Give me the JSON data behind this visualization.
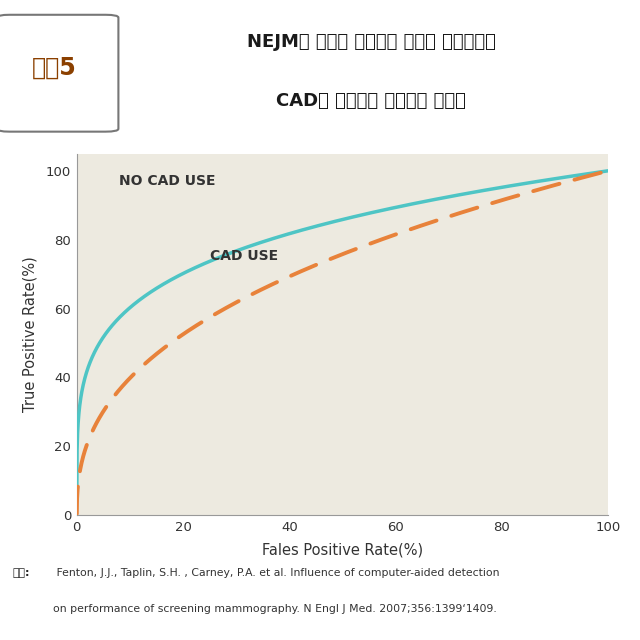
{
  "title_label": "그림5",
  "title_text_line1": "NEJM에 게재된 논문에서 발췌한 유방촬영술",
  "title_text_line2": "CAD의 부작용을 보여주는 그래프",
  "xlabel": "Fales Positive Rate(%)",
  "ylabel": "True Positive Rate(%)",
  "no_cad_label": "NO CAD USE",
  "cad_label": "CAD USE",
  "no_cad_color": "#4EC5C5",
  "cad_color": "#E8823A",
  "plot_bg_color": "#EDEAE0",
  "xlim": [
    0,
    100
  ],
  "ylim": [
    0,
    105
  ],
  "xticks": [
    0,
    20,
    40,
    60,
    80,
    100
  ],
  "yticks": [
    0,
    20,
    40,
    60,
    80,
    100
  ],
  "no_cad_exponent": 0.22,
  "cad_exponent": 0.4,
  "footnote_bold": "출처:",
  "footnote_line1": " Fenton, J.J., Taplin, S.H. , Carney, P.A. et al. Influence of computer-aided detection",
  "footnote_line2": "on performance of screening mammography. N Engl J Med. 2007;356:1399‘1409.",
  "title_label_color": "#8B4000",
  "title_text_color": "#1A1A1A",
  "label_text_color": "#333333",
  "footnote_color": "#333333",
  "border_color": "#555555"
}
